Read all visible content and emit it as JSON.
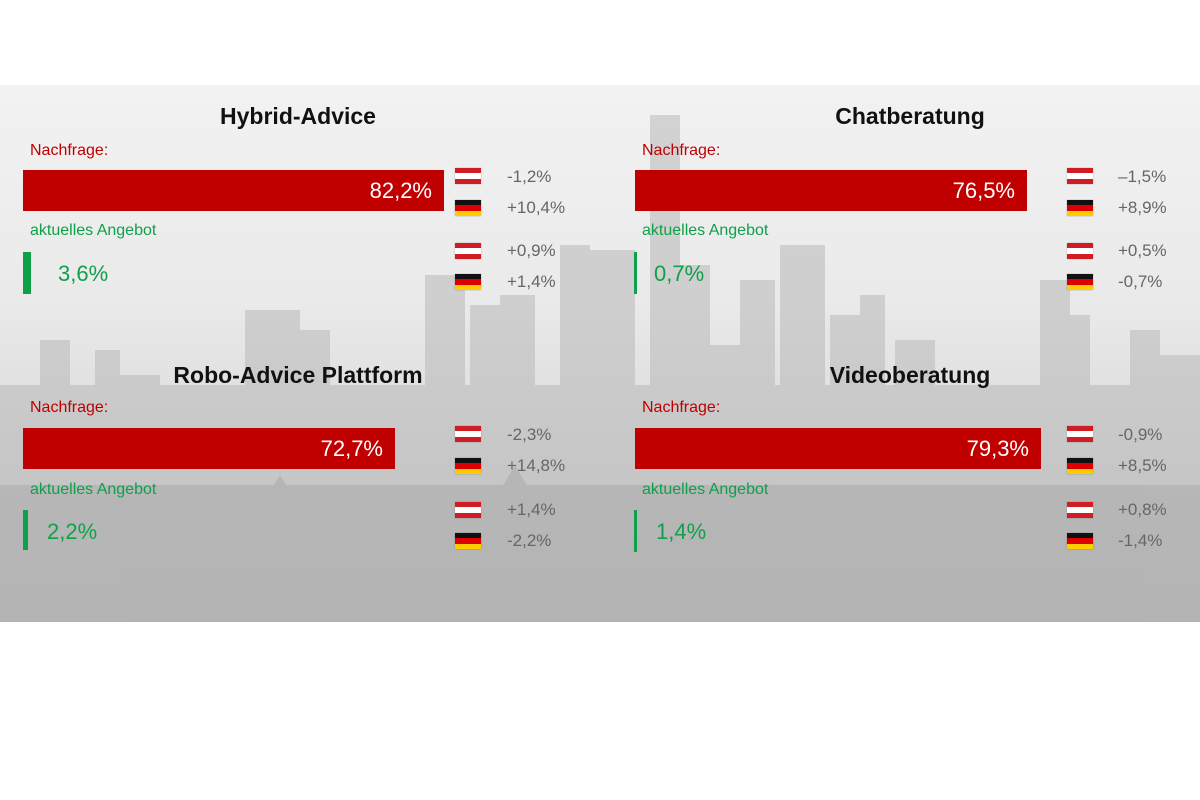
{
  "colors": {
    "demand_bar": "#c00000",
    "offer_bar": "#10a04a",
    "flag_at": [
      "#d01c24",
      "#ffffff",
      "#d01c24"
    ],
    "flag_de": [
      "#111111",
      "#dd0000",
      "#ffcc00"
    ]
  },
  "chart_data": [
    {
      "type": "bar",
      "title": "Hybrid-Advice",
      "demand": {
        "label": "Nachfrage:",
        "value": 82.2,
        "text": "82,2%"
      },
      "offer": {
        "label": "aktuelles Angebot",
        "value": 3.6,
        "text": "3,6%"
      },
      "changes": [
        {
          "flag": "AT",
          "icon": "austria-flag-icon",
          "text": "-1,2%"
        },
        {
          "flag": "DE",
          "icon": "germany-flag-icon",
          "text": "+10,4%"
        },
        {
          "flag": "AT",
          "icon": "austria-flag-icon",
          "text": "+0,9%"
        },
        {
          "flag": "DE",
          "icon": "germany-flag-icon",
          "text": "+1,4%"
        }
      ]
    },
    {
      "type": "bar",
      "title": "Chatberatung",
      "demand": {
        "label": "Nachfrage:",
        "value": 76.5,
        "text": "76,5%"
      },
      "offer": {
        "label": "aktuelles Angebot",
        "value": 0.7,
        "text": "0,7%"
      },
      "changes": [
        {
          "flag": "AT",
          "icon": "austria-flag-icon",
          "text": "–1,5%"
        },
        {
          "flag": "DE",
          "icon": "germany-flag-icon",
          "text": "+8,9%"
        },
        {
          "flag": "AT",
          "icon": "austria-flag-icon",
          "text": "+0,5%"
        },
        {
          "flag": "DE",
          "icon": "germany-flag-icon",
          "text": "-0,7%"
        }
      ]
    },
    {
      "type": "bar",
      "title": "Robo-Advice Plattform",
      "demand": {
        "label": "Nachfrage:",
        "value": 72.7,
        "text": "72,7%"
      },
      "offer": {
        "label": "aktuelles Angebot",
        "value": 2.2,
        "text": "2,2%"
      },
      "changes": [
        {
          "flag": "AT",
          "icon": "austria-flag-icon",
          "text": "-2,3%"
        },
        {
          "flag": "DE",
          "icon": "germany-flag-icon",
          "text": "+14,8%"
        },
        {
          "flag": "AT",
          "icon": "austria-flag-icon",
          "text": "+1,4%"
        },
        {
          "flag": "DE",
          "icon": "germany-flag-icon",
          "text": "-2,2%"
        }
      ]
    },
    {
      "type": "bar",
      "title": "Videoberatung",
      "demand": {
        "label": "Nachfrage:",
        "value": 79.3,
        "text": "79,3%"
      },
      "offer": {
        "label": "aktuelles Angebot",
        "value": 1.4,
        "text": "1,4%"
      },
      "changes": [
        {
          "flag": "AT",
          "icon": "austria-flag-icon",
          "text": "-0,9%"
        },
        {
          "flag": "DE",
          "icon": "germany-flag-icon",
          "text": "+8,5%"
        },
        {
          "flag": "AT",
          "icon": "austria-flag-icon",
          "text": "+0,8%"
        },
        {
          "flag": "DE",
          "icon": "germany-flag-icon",
          "text": "-1,4%"
        }
      ]
    }
  ]
}
